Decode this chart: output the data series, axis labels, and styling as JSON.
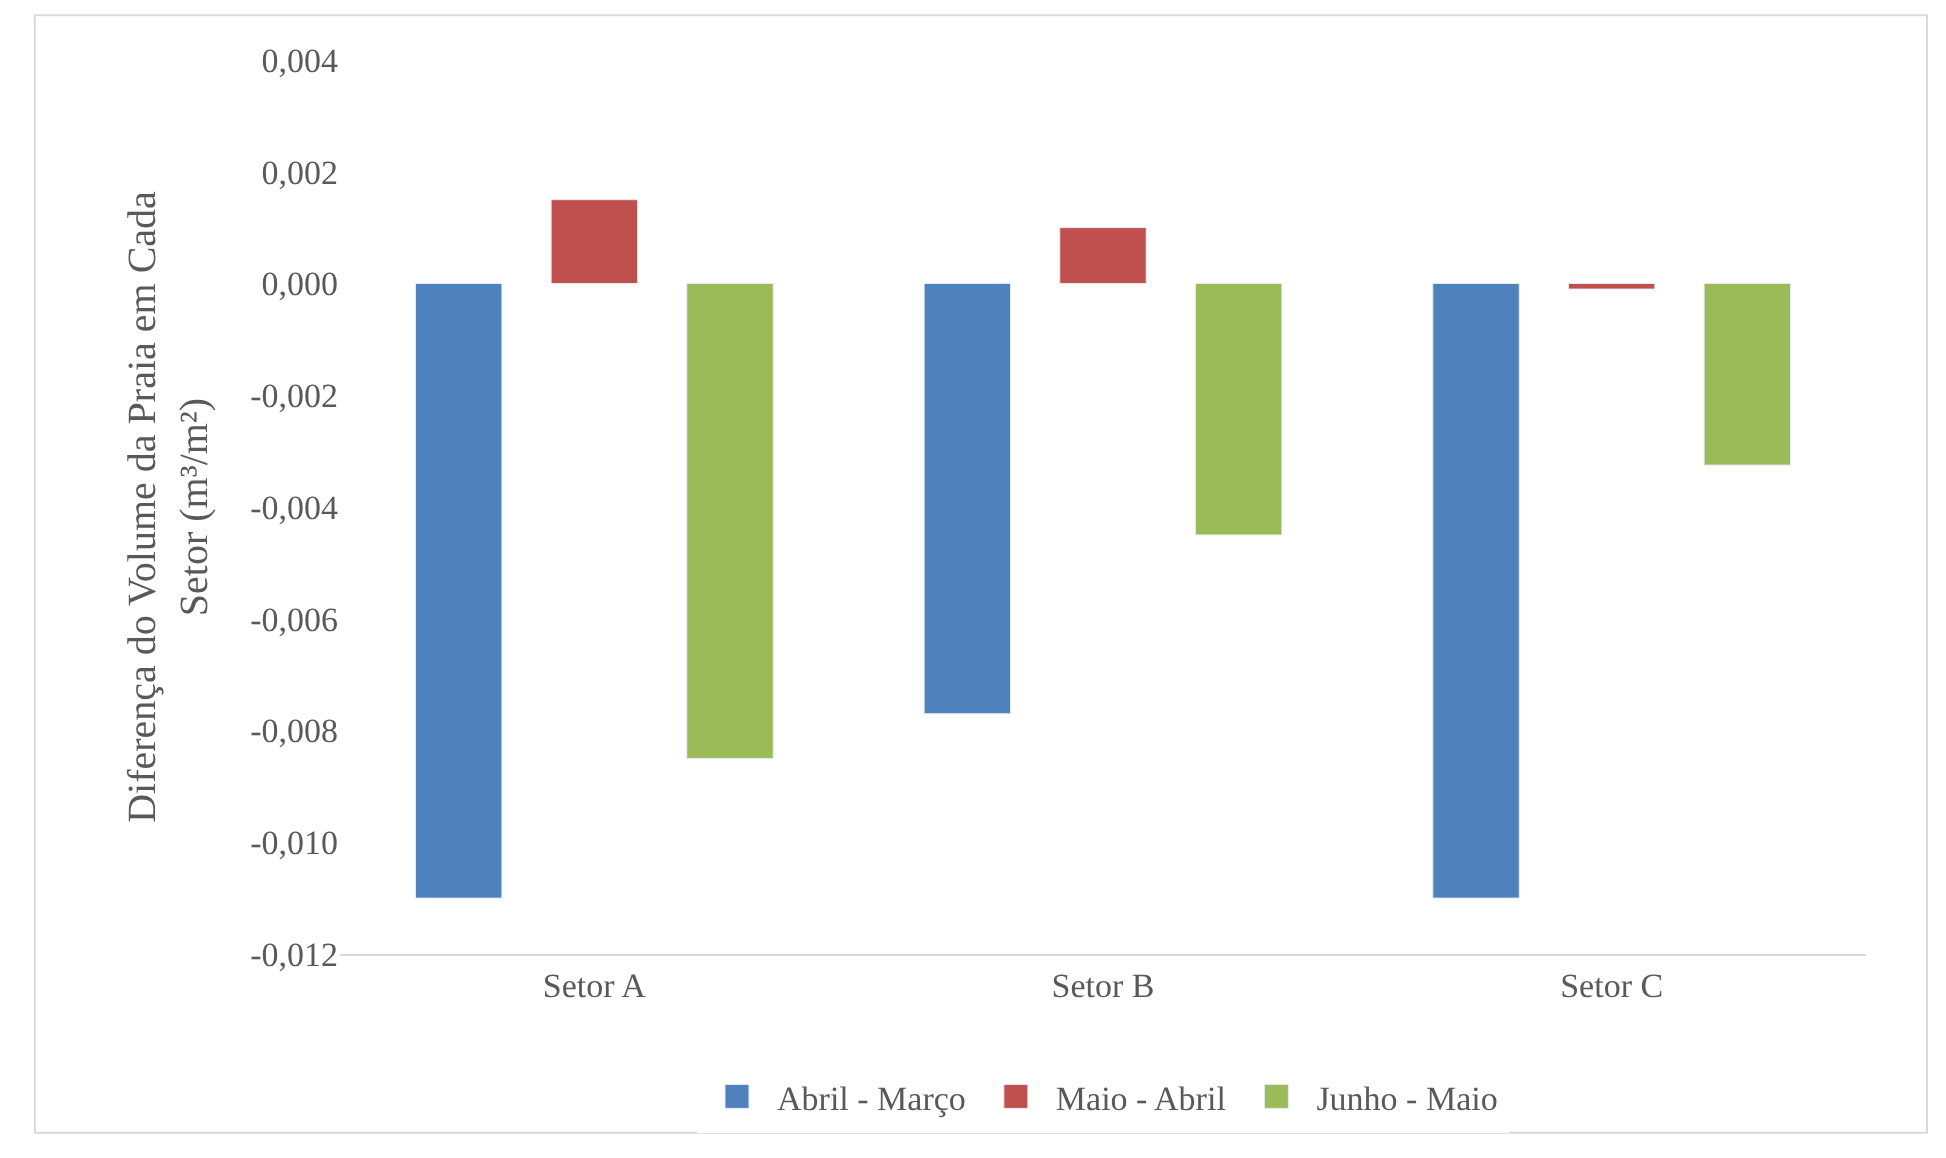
{
  "chart_data": {
    "type": "bar",
    "ylabel": "Diferença do Volume da Praia em Cada Setor (m³/m²)",
    "categories": [
      "Setor A",
      "Setor B",
      "Setor C"
    ],
    "series": [
      {
        "name": "Abril - Março",
        "color": "#4f81bd",
        "values": [
          -0.011,
          -0.0077,
          -0.011
        ]
      },
      {
        "name": "Maio - Abril",
        "color": "#c0504d",
        "values": [
          0.0015,
          0.001,
          -0.0001
        ]
      },
      {
        "name": "Junho - Maio",
        "color": "#9bbb59",
        "values": [
          -0.0085,
          -0.0045,
          -0.00325
        ]
      }
    ],
    "ylim": [
      -0.012,
      0.004
    ],
    "yticks": [
      {
        "value": -0.012,
        "label": "-0,012"
      },
      {
        "value": -0.01,
        "label": "-0,010"
      },
      {
        "value": -0.008,
        "label": "-0,008"
      },
      {
        "value": -0.006,
        "label": "-0,006"
      },
      {
        "value": -0.004,
        "label": "-0,004"
      },
      {
        "value": -0.002,
        "label": "-0,002"
      },
      {
        "value": 0,
        "label": "0,000"
      },
      {
        "value": 0.002,
        "label": "0,002"
      },
      {
        "value": 0.004,
        "label": "0,004"
      }
    ],
    "legend": "bottom"
  }
}
